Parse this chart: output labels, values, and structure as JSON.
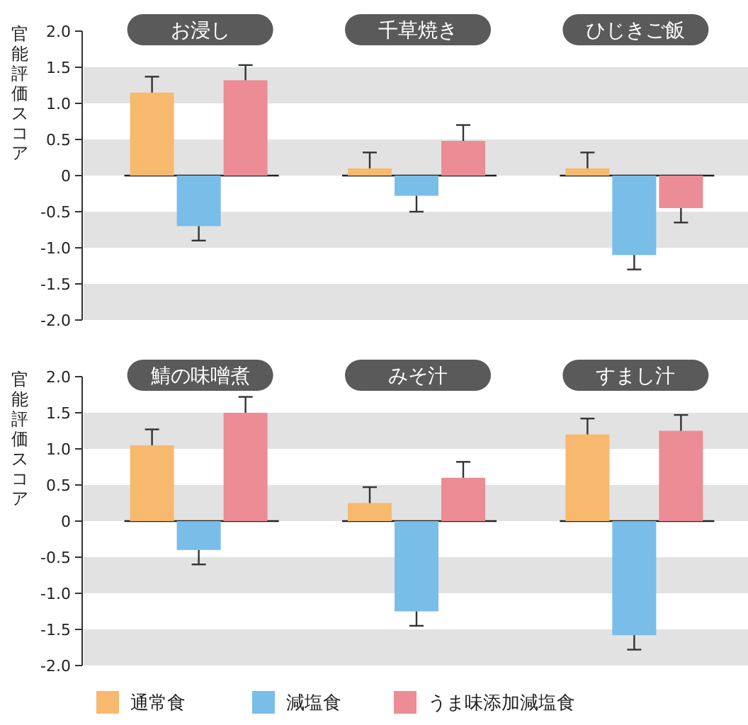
{
  "chart_data": [
    {
      "type": "bar",
      "ylabel": "官能評価スコア",
      "categories": [
        "お浸し",
        "千草焼き",
        "ひじきご飯"
      ],
      "ylim": [
        -2,
        2
      ],
      "yticks": [
        {
          "value": -2,
          "label": "-2.0"
        },
        {
          "value": -1.5,
          "label": "-1.5"
        },
        {
          "value": -1,
          "label": "-1.0"
        },
        {
          "value": -0.5,
          "label": "-0.5"
        },
        0,
        {
          "value": 0.5,
          "label": "0.5"
        },
        {
          "value": 1,
          "label": "1.0"
        },
        {
          "value": 1.5,
          "label": "1.5"
        },
        {
          "value": 2,
          "label": "2.0"
        }
      ],
      "legend": false,
      "ref_lines": [
        {
          "axis": "y",
          "value": 0,
          "color": "#222222"
        }
      ],
      "bands": [
        {
          "axis": "y",
          "from": 1,
          "to": 1.5,
          "color": "#e2e2e2"
        },
        {
          "axis": "y",
          "from": 0,
          "to": 0.5,
          "color": "#e2e2e2"
        },
        {
          "axis": "y",
          "from": -1,
          "to": -0.5,
          "color": "#e2e2e2"
        },
        {
          "axis": "y",
          "from": -2,
          "to": -1.5,
          "color": "#e2e2e2"
        }
      ],
      "series": [
        {
          "color": "#f7b96e",
          "values": [
            1.15,
            0.1,
            0.1
          ],
          "errors": [
            [
              1.15,
              1.37
            ],
            [
              0.1,
              0.32
            ],
            [
              0.1,
              0.32
            ]
          ]
        },
        {
          "color": "#79bde9",
          "values": [
            -0.7,
            -0.28,
            -1.1
          ],
          "errors": [
            [
              -0.9,
              -0.7
            ],
            [
              -0.5,
              -0.28
            ],
            [
              -1.3,
              -1.1
            ]
          ]
        },
        {
          "color": "#ec8c95",
          "values": [
            1.32,
            0.48,
            -0.45
          ],
          "errors": [
            [
              1.32,
              1.53
            ],
            [
              0.48,
              0.7
            ],
            [
              -0.65,
              -0.45
            ]
          ]
        }
      ]
    },
    {
      "type": "bar",
      "ylabel": "官能評価スコア",
      "categories": [
        "鯖の味噌煮",
        "みそ汁",
        "すまし汁"
      ],
      "ylim": [
        -2,
        2
      ],
      "yticks": [
        {
          "value": -2,
          "label": "-2.0"
        },
        {
          "value": -1.5,
          "label": "-1.5"
        },
        {
          "value": -1,
          "label": "-1.0"
        },
        {
          "value": -0.5,
          "label": "-0.5"
        },
        0,
        {
          "value": 0.5,
          "label": "0.5"
        },
        {
          "value": 1,
          "label": "1.0"
        },
        {
          "value": 1.5,
          "label": "1.5"
        },
        {
          "value": 2,
          "label": "2.0"
        }
      ],
      "legend": "bottom",
      "ref_lines": [
        {
          "axis": "y",
          "value": 0,
          "color": "#222222"
        }
      ],
      "bands": [
        {
          "axis": "y",
          "from": 1,
          "to": 1.5,
          "color": "#e2e2e2"
        },
        {
          "axis": "y",
          "from": 0,
          "to": 0.5,
          "color": "#e2e2e2"
        },
        {
          "axis": "y",
          "from": -1,
          "to": -0.5,
          "color": "#e2e2e2"
        },
        {
          "axis": "y",
          "from": -2,
          "to": -1.5,
          "color": "#e2e2e2"
        }
      ],
      "series": [
        {
          "name": "通常食",
          "color": "#f7b96e",
          "values": [
            1.05,
            0.25,
            1.2
          ],
          "errors": [
            [
              1.05,
              1.27
            ],
            [
              0.25,
              0.47
            ],
            [
              1.2,
              1.42
            ]
          ]
        },
        {
          "name": "減塩食",
          "color": "#79bde9",
          "values": [
            -0.4,
            -1.25,
            -1.58
          ],
          "errors": [
            [
              -0.6,
              -0.4
            ],
            [
              -1.45,
              -1.25
            ],
            [
              -1.78,
              -1.58
            ]
          ]
        },
        {
          "name": "うま味添加減塩食",
          "color": "#ec8c95",
          "values": [
            1.5,
            0.6,
            1.25
          ],
          "errors": [
            [
              1.5,
              1.72
            ],
            [
              0.6,
              0.82
            ],
            [
              1.25,
              1.47
            ]
          ]
        }
      ]
    }
  ]
}
